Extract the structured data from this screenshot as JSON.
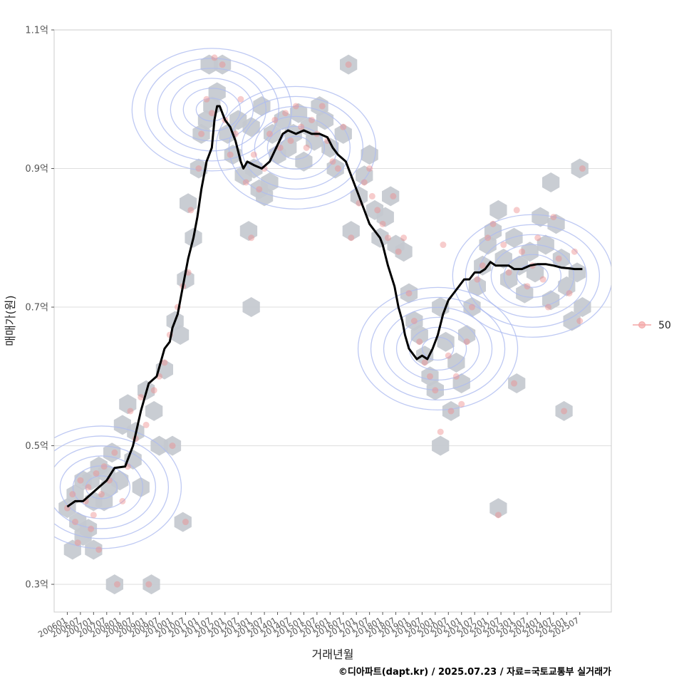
{
  "chart_data": {
    "type": "scatter",
    "title": "",
    "xlabel": "거래년월",
    "ylabel": "매매가(원)",
    "y_ticks": [
      "0.3억",
      "0.5억",
      "0.7억",
      "0.9억",
      "1.1억"
    ],
    "y_tick_values": [
      0.3,
      0.5,
      0.7,
      0.9,
      1.1
    ],
    "ylim": [
      0.26,
      1.1
    ],
    "x_ticks": [
      "200601",
      "200607",
      "200701",
      "200707",
      "200801",
      "200807",
      "200901",
      "200907",
      "201001",
      "201007",
      "201101",
      "201107",
      "201201",
      "201207",
      "201301",
      "201307",
      "201401",
      "201407",
      "201501",
      "201507",
      "201601",
      "201607",
      "201701",
      "201707",
      "201801",
      "201807",
      "201901",
      "201907",
      "202001",
      "202007",
      "202101",
      "202107",
      "202201",
      "202207",
      "202301",
      "202307",
      "202401",
      "202407",
      "202501",
      "202507"
    ],
    "xlim": [
      2005.5,
      2026.7
    ],
    "grid": true,
    "legend": {
      "position": "right",
      "entries": [
        {
          "label": "50",
          "marker": "circle",
          "color": "#f4a5a5"
        }
      ]
    },
    "colors": {
      "point": "#ee8e8e",
      "hex": "#c4c9cf",
      "contour": "#aebcf0",
      "trend": "#000000",
      "grid": "#dedede",
      "panel_border": "#cccccc"
    },
    "series": [
      {
        "name": "moving_average",
        "style": "line",
        "x": [
          2006.0,
          2006.3,
          2006.6,
          2006.9,
          2007.2,
          2007.5,
          2007.8,
          2008.2,
          2008.5,
          2008.8,
          2009.1,
          2009.4,
          2009.7,
          2009.9,
          2010.0,
          2010.2,
          2010.4,
          2010.6,
          2010.8,
          2010.95,
          2011.1,
          2011.3,
          2011.5,
          2011.6,
          2011.7,
          2011.8,
          2011.9,
          2012.0,
          2012.2,
          2012.4,
          2012.6,
          2012.7,
          2012.85,
          2013.1,
          2013.4,
          2013.7,
          2013.95,
          2014.2,
          2014.4,
          2014.7,
          2015.0,
          2015.3,
          2015.6,
          2015.9,
          2016.1,
          2016.3,
          2016.45,
          2016.6,
          2016.9,
          2017.1,
          2017.3,
          2017.5,
          2017.7,
          2017.9,
          2018.0,
          2018.2,
          2018.45,
          2018.6,
          2018.75,
          2018.85,
          2019.0,
          2019.2,
          2019.3,
          2019.5,
          2019.7,
          2019.9,
          2020.1,
          2020.3,
          2020.5,
          2020.7,
          2020.9,
          2021.1,
          2021.3,
          2021.5,
          2021.7,
          2021.9,
          2022.1,
          2022.3,
          2022.5,
          2022.8,
          2023.0,
          2023.3,
          2023.6,
          2023.9,
          2024.2,
          2024.5,
          2024.8,
          2025.1,
          2025.3,
          2025.6
        ],
        "y": [
          0.412,
          0.42,
          0.42,
          0.43,
          0.44,
          0.45,
          0.468,
          0.47,
          0.5,
          0.55,
          0.59,
          0.6,
          0.64,
          0.65,
          0.67,
          0.69,
          0.73,
          0.77,
          0.8,
          0.83,
          0.87,
          0.91,
          0.93,
          0.97,
          0.99,
          0.99,
          0.98,
          0.97,
          0.96,
          0.94,
          0.91,
          0.9,
          0.91,
          0.905,
          0.9,
          0.91,
          0.93,
          0.95,
          0.955,
          0.95,
          0.955,
          0.95,
          0.95,
          0.945,
          0.93,
          0.92,
          0.915,
          0.91,
          0.88,
          0.86,
          0.84,
          0.82,
          0.81,
          0.8,
          0.79,
          0.76,
          0.73,
          0.7,
          0.68,
          0.66,
          0.64,
          0.63,
          0.625,
          0.63,
          0.625,
          0.64,
          0.66,
          0.69,
          0.71,
          0.72,
          0.73,
          0.74,
          0.74,
          0.75,
          0.75,
          0.755,
          0.765,
          0.76,
          0.76,
          0.76,
          0.755,
          0.755,
          0.76,
          0.762,
          0.762,
          0.76,
          0.757,
          0.756,
          0.755,
          0.755
        ]
      }
    ],
    "contour_centers": [
      {
        "x": 2007.3,
        "y": 0.44
      },
      {
        "x": 2011.5,
        "y": 0.985
      },
      {
        "x": 2014.7,
        "y": 0.93
      },
      {
        "x": 2020.1,
        "y": 0.64
      },
      {
        "x": 2023.7,
        "y": 0.745
      }
    ],
    "hexbin": [
      [
        2006.0,
        0.41
      ],
      [
        2006.3,
        0.43
      ],
      [
        2006.6,
        0.45
      ],
      [
        2006.9,
        0.45
      ],
      [
        2007.2,
        0.47
      ],
      [
        2007.5,
        0.46
      ],
      [
        2007.7,
        0.49
      ],
      [
        2006.4,
        0.39
      ],
      [
        2006.8,
        0.38
      ],
      [
        2007.0,
        0.42
      ],
      [
        2007.4,
        0.42
      ],
      [
        2007.6,
        0.44
      ],
      [
        2006.2,
        0.35
      ],
      [
        2006.6,
        0.37
      ],
      [
        2007.0,
        0.35
      ],
      [
        2007.8,
        0.3
      ],
      [
        2008.0,
        0.45
      ],
      [
        2008.1,
        0.53
      ],
      [
        2008.3,
        0.56
      ],
      [
        2008.5,
        0.48
      ],
      [
        2008.6,
        0.52
      ],
      [
        2008.8,
        0.44
      ],
      [
        2009.0,
        0.58
      ],
      [
        2009.2,
        0.3
      ],
      [
        2009.3,
        0.55
      ],
      [
        2009.5,
        0.5
      ],
      [
        2009.7,
        0.61
      ],
      [
        2010.0,
        0.5
      ],
      [
        2010.1,
        0.68
      ],
      [
        2010.3,
        0.66
      ],
      [
        2010.5,
        0.74
      ],
      [
        2010.8,
        0.8
      ],
      [
        2010.6,
        0.85
      ],
      [
        2010.4,
        0.39
      ],
      [
        2011.0,
        0.9
      ],
      [
        2011.1,
        0.95
      ],
      [
        2011.3,
        0.97
      ],
      [
        2011.5,
        0.99
      ],
      [
        2011.7,
        1.01
      ],
      [
        2011.9,
        1.05
      ],
      [
        2011.4,
        1.05
      ],
      [
        2012.1,
        0.95
      ],
      [
        2012.3,
        0.92
      ],
      [
        2012.5,
        0.97
      ],
      [
        2012.7,
        0.89
      ],
      [
        2012.9,
        0.81
      ],
      [
        2013.1,
        0.9
      ],
      [
        2013.3,
        0.87
      ],
      [
        2013.5,
        0.86
      ],
      [
        2013.7,
        0.88
      ],
      [
        2013.0,
        0.96
      ],
      [
        2013.4,
        0.99
      ],
      [
        2013.8,
        0.95
      ],
      [
        2014.0,
        0.92
      ],
      [
        2014.2,
        0.97
      ],
      [
        2014.4,
        0.93
      ],
      [
        2014.6,
        0.95
      ],
      [
        2014.8,
        0.98
      ],
      [
        2015.0,
        0.91
      ],
      [
        2015.2,
        0.96
      ],
      [
        2015.4,
        0.94
      ],
      [
        2015.6,
        0.99
      ],
      [
        2015.8,
        0.97
      ],
      [
        2016.0,
        0.93
      ],
      [
        2016.2,
        0.9
      ],
      [
        2016.5,
        0.95
      ],
      [
        2016.7,
        1.05
      ],
      [
        2016.8,
        0.81
      ],
      [
        2017.1,
        0.86
      ],
      [
        2017.3,
        0.89
      ],
      [
        2017.5,
        0.92
      ],
      [
        2017.7,
        0.84
      ],
      [
        2017.9,
        0.8
      ],
      [
        2018.1,
        0.83
      ],
      [
        2018.3,
        0.86
      ],
      [
        2018.5,
        0.79
      ],
      [
        2018.8,
        0.78
      ],
      [
        2019.0,
        0.72
      ],
      [
        2019.2,
        0.68
      ],
      [
        2019.4,
        0.66
      ],
      [
        2019.6,
        0.63
      ],
      [
        2019.8,
        0.6
      ],
      [
        2020.0,
        0.58
      ],
      [
        2020.2,
        0.7
      ],
      [
        2020.4,
        0.65
      ],
      [
        2020.6,
        0.55
      ],
      [
        2020.8,
        0.62
      ],
      [
        2021.0,
        0.59
      ],
      [
        2021.2,
        0.66
      ],
      [
        2021.4,
        0.7
      ],
      [
        2021.6,
        0.73
      ],
      [
        2021.8,
        0.76
      ],
      [
        2022.0,
        0.79
      ],
      [
        2022.2,
        0.81
      ],
      [
        2022.4,
        0.84
      ],
      [
        2022.6,
        0.77
      ],
      [
        2022.8,
        0.74
      ],
      [
        2023.0,
        0.8
      ],
      [
        2023.2,
        0.76
      ],
      [
        2023.4,
        0.72
      ],
      [
        2023.6,
        0.78
      ],
      [
        2023.8,
        0.75
      ],
      [
        2024.0,
        0.83
      ],
      [
        2024.2,
        0.79
      ],
      [
        2024.4,
        0.71
      ],
      [
        2024.6,
        0.82
      ],
      [
        2024.8,
        0.77
      ],
      [
        2025.0,
        0.73
      ],
      [
        2025.2,
        0.68
      ],
      [
        2025.4,
        0.75
      ],
      [
        2025.6,
        0.7
      ],
      [
        2025.5,
        0.9
      ],
      [
        2024.4,
        0.88
      ],
      [
        2023.1,
        0.59
      ],
      [
        2024.9,
        0.55
      ],
      [
        2022.4,
        0.41
      ],
      [
        2020.2,
        0.5
      ],
      [
        2013.0,
        0.7
      ]
    ],
    "points": [
      [
        2006.0,
        0.41
      ],
      [
        2006.2,
        0.43
      ],
      [
        2006.3,
        0.39
      ],
      [
        2006.5,
        0.45
      ],
      [
        2006.7,
        0.42
      ],
      [
        2006.8,
        0.44
      ],
      [
        2007.0,
        0.4
      ],
      [
        2007.1,
        0.46
      ],
      [
        2007.3,
        0.43
      ],
      [
        2007.4,
        0.47
      ],
      [
        2007.6,
        0.45
      ],
      [
        2007.8,
        0.49
      ],
      [
        2006.4,
        0.36
      ],
      [
        2006.9,
        0.38
      ],
      [
        2007.2,
        0.35
      ],
      [
        2007.9,
        0.3
      ],
      [
        2008.1,
        0.42
      ],
      [
        2008.3,
        0.47
      ],
      [
        2008.4,
        0.55
      ],
      [
        2008.6,
        0.51
      ],
      [
        2008.8,
        0.57
      ],
      [
        2009.0,
        0.53
      ],
      [
        2009.1,
        0.3
      ],
      [
        2009.3,
        0.58
      ],
      [
        2009.5,
        0.6
      ],
      [
        2009.7,
        0.62
      ],
      [
        2009.9,
        0.66
      ],
      [
        2010.0,
        0.5
      ],
      [
        2010.2,
        0.7
      ],
      [
        2010.4,
        0.73
      ],
      [
        2010.6,
        0.75
      ],
      [
        2010.7,
        0.84
      ],
      [
        2010.5,
        0.39
      ],
      [
        2011.0,
        0.9
      ],
      [
        2011.1,
        0.95
      ],
      [
        2011.3,
        1.0
      ],
      [
        2011.5,
        0.98
      ],
      [
        2011.6,
        1.06
      ],
      [
        2011.9,
        1.05
      ],
      [
        2012.0,
        0.97
      ],
      [
        2012.2,
        0.92
      ],
      [
        2012.4,
        0.95
      ],
      [
        2012.6,
        1.0
      ],
      [
        2012.8,
        0.88
      ],
      [
        2013.0,
        0.8
      ],
      [
        2013.1,
        0.92
      ],
      [
        2013.3,
        0.87
      ],
      [
        2013.5,
        0.9
      ],
      [
        2013.7,
        0.95
      ],
      [
        2013.9,
        0.97
      ],
      [
        2014.1,
        0.93
      ],
      [
        2014.3,
        0.98
      ],
      [
        2014.5,
        0.94
      ],
      [
        2014.7,
        0.99
      ],
      [
        2014.9,
        0.96
      ],
      [
        2015.1,
        0.93
      ],
      [
        2015.3,
        0.97
      ],
      [
        2015.5,
        0.95
      ],
      [
        2015.7,
        0.99
      ],
      [
        2015.9,
        0.94
      ],
      [
        2016.1,
        0.91
      ],
      [
        2016.3,
        0.9
      ],
      [
        2016.5,
        0.96
      ],
      [
        2016.7,
        1.05
      ],
      [
        2016.8,
        0.8
      ],
      [
        2017.1,
        0.85
      ],
      [
        2017.3,
        0.88
      ],
      [
        2017.5,
        0.9
      ],
      [
        2017.6,
        0.86
      ],
      [
        2017.8,
        0.84
      ],
      [
        2018.0,
        0.82
      ],
      [
        2018.2,
        0.8
      ],
      [
        2018.4,
        0.86
      ],
      [
        2018.6,
        0.78
      ],
      [
        2018.8,
        0.8
      ],
      [
        2019.0,
        0.72
      ],
      [
        2019.2,
        0.68
      ],
      [
        2019.4,
        0.65
      ],
      [
        2019.6,
        0.62
      ],
      [
        2019.8,
        0.6
      ],
      [
        2020.0,
        0.58
      ],
      [
        2020.2,
        0.52
      ],
      [
        2020.3,
        0.79
      ],
      [
        2020.5,
        0.63
      ],
      [
        2020.6,
        0.55
      ],
      [
        2020.8,
        0.6
      ],
      [
        2021.0,
        0.56
      ],
      [
        2021.2,
        0.65
      ],
      [
        2021.4,
        0.7
      ],
      [
        2021.6,
        0.74
      ],
      [
        2021.8,
        0.76
      ],
      [
        2022.0,
        0.8
      ],
      [
        2022.2,
        0.82
      ],
      [
        2022.4,
        0.4
      ],
      [
        2022.6,
        0.79
      ],
      [
        2022.8,
        0.75
      ],
      [
        2023.0,
        0.59
      ],
      [
        2023.1,
        0.84
      ],
      [
        2023.3,
        0.78
      ],
      [
        2023.5,
        0.73
      ],
      [
        2023.7,
        0.76
      ],
      [
        2023.9,
        0.8
      ],
      [
        2024.1,
        0.74
      ],
      [
        2024.3,
        0.7
      ],
      [
        2024.5,
        0.83
      ],
      [
        2024.7,
        0.77
      ],
      [
        2024.9,
        0.55
      ],
      [
        2025.1,
        0.72
      ],
      [
        2025.3,
        0.78
      ],
      [
        2025.5,
        0.68
      ],
      [
        2025.6,
        0.9
      ]
    ]
  },
  "credit": "©디아파트(dapt.kr) / 2025.07.23 / 자료=국토교통부 실거래가"
}
